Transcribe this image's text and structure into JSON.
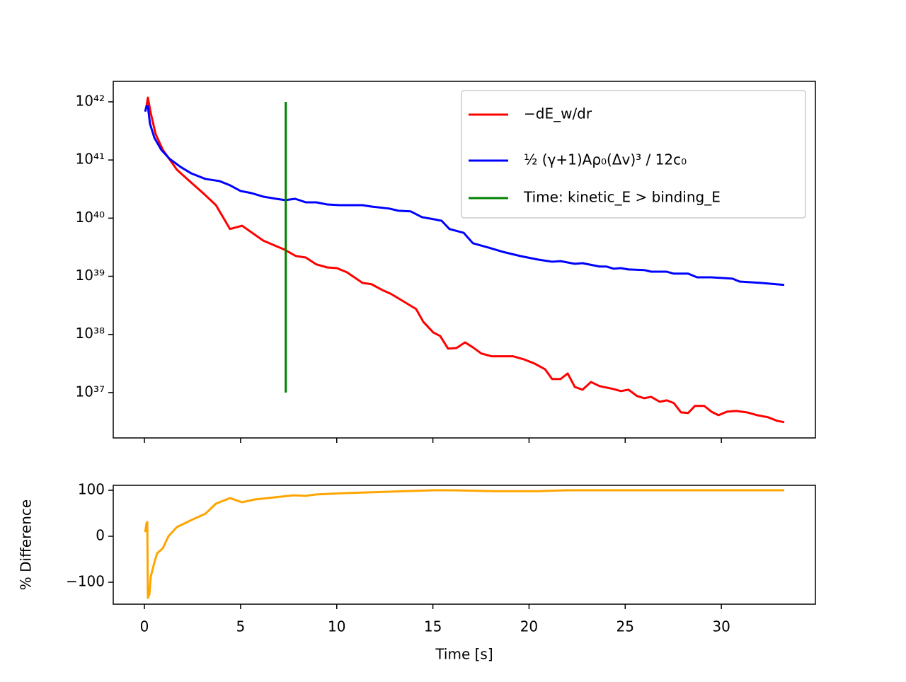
{
  "chart_data": [
    {
      "type": "line",
      "yscale": "log",
      "legend": "upper right",
      "xlim": [
        -1.62,
        34.89
      ],
      "xticks": [
        0,
        5,
        10,
        15,
        20,
        25,
        30
      ],
      "ylim": [
        1.66e+36,
        2.25e+42
      ],
      "yticks": [
        {
          "value": 1e+37,
          "label": "10³⁷"
        },
        {
          "value": 1e+38,
          "label": "10³⁸"
        },
        {
          "value": 1e+39,
          "label": "10³⁹"
        },
        {
          "value": 1e+40,
          "label": "10⁴⁰"
        },
        {
          "value": 1e+41,
          "label": "10⁴¹"
        },
        {
          "value": 1e+42,
          "label": "10⁴²"
        }
      ],
      "series": [
        {
          "name": "−dE_w/dr",
          "color": "#ff0000",
          "x": [
            0.11,
            0.18,
            0.33,
            0.59,
            0.96,
            1.69,
            2.43,
            3.17,
            3.72,
            4.45,
            5.08,
            6.18,
            7.29,
            7.88,
            8.39,
            8.94,
            9.5,
            10.01,
            10.53,
            11.34,
            11.81,
            12.37,
            12.81,
            13.47,
            14.13,
            14.5,
            15.02,
            15.38,
            15.79,
            16.23,
            16.67,
            17.08,
            17.52,
            18.07,
            19.18,
            19.73,
            20.28,
            20.83,
            21.2,
            21.64,
            22.01,
            22.38,
            22.78,
            23.22,
            23.67,
            24.4,
            24.77,
            25.17,
            25.62,
            25.98,
            26.35,
            26.79,
            27.16,
            27.53,
            27.9,
            28.27,
            28.63,
            29.11,
            29.48,
            29.85,
            30.29,
            30.77,
            31.32,
            31.87,
            32.43,
            32.9,
            33.27
          ],
          "values": [
            8.45e+41,
            1.18e+42,
            6.4e+41,
            2.75e+41,
            1.49e+41,
            6.8e+40,
            4.1e+40,
            2.48e+40,
            1.67e+40,
            6.5e+39,
            7.4e+39,
            4.1e+39,
            2.87e+39,
            2.23e+39,
            2.1e+39,
            1.6e+39,
            1.42e+39,
            1.38e+39,
            1.17e+39,
            7.7e+38,
            7.3e+38,
            5.8e+38,
            5e+38,
            3.7e+38,
            2.73e+38,
            1.65e+38,
            1.08e+38,
            9.4e+37,
            5.7e+37,
            5.85e+37,
            7.3e+37,
            6e+37,
            4.7e+37,
            4.2e+37,
            4.2e+37,
            3.73e+37,
            3.16e+37,
            2.52e+37,
            1.71e+37,
            1.71e+37,
            2.13e+37,
            1.25e+37,
            1.12e+37,
            1.52e+37,
            1.29e+37,
            1.15e+37,
            1.06e+37,
            1.12e+37,
            8.7e+36,
            8e+36,
            8.45e+36,
            6.95e+36,
            7.35e+36,
            6.6e+36,
            4.57e+36,
            4.45e+36,
            5.9e+36,
            5.9e+36,
            4.7e+36,
            4.08e+36,
            4.7e+36,
            4.83e+36,
            4.57e+36,
            4.08e+36,
            3.76e+36,
            3.27e+36,
            3.09e+36
          ]
        },
        {
          "name": "½ (γ+1)Aρ₀(Δv)³ / 12c₀",
          "color": "#0000ff",
          "x": [
            0.04,
            0.11,
            0.18,
            0.29,
            0.52,
            0.88,
            1.32,
            1.88,
            2.43,
            3.17,
            3.9,
            4.45,
            5.0,
            5.55,
            6.18,
            6.85,
            7.32,
            7.84,
            8.39,
            8.94,
            9.5,
            10.16,
            11.34,
            11.81,
            12.73,
            13.21,
            13.84,
            14.43,
            15.02,
            15.46,
            15.86,
            16.6,
            17.08,
            17.89,
            18.62,
            19.54,
            20.46,
            21.2,
            21.64,
            22.38,
            22.78,
            23.67,
            24.03,
            24.4,
            24.77,
            25.17,
            25.98,
            26.35,
            27.16,
            27.53,
            28.27,
            28.74,
            29.48,
            30.58,
            30.95,
            32.06,
            33.27
          ],
          "values": [
            6.8e+41,
            8.45e+41,
            8.45e+41,
            4.2e+41,
            2.4e+41,
            1.49e+41,
            1.04e+41,
            7.6e+40,
            5.9e+40,
            4.72e+40,
            4.34e+40,
            3.67e+40,
            2.93e+40,
            2.7e+40,
            2.34e+40,
            2.15e+40,
            2.04e+40,
            2.15e+40,
            1.87e+40,
            1.87e+40,
            1.72e+40,
            1.67e+40,
            1.67e+40,
            1.58e+40,
            1.46e+40,
            1.34e+40,
            1.31e+40,
            1.04e+40,
            9.6e+39,
            9e+39,
            6.5e+39,
            5.6e+39,
            3.7e+39,
            3.12e+39,
            2.64e+39,
            2.23e+39,
            1.94e+39,
            1.78e+39,
            1.82e+39,
            1.64e+39,
            1.68e+39,
            1.47e+39,
            1.47e+39,
            1.35e+39,
            1.38e+39,
            1.31e+39,
            1.28e+39,
            1.2e+39,
            1.2e+39,
            1.11e+39,
            1.11e+39,
            9.6e+38,
            9.6e+38,
            9.1e+38,
            8.1e+38,
            7.7e+38,
            7.1e+38
          ]
        },
        {
          "name": "Time: kinetic_E > binding_E",
          "color": "#008000",
          "x": [
            7.35,
            7.35
          ],
          "values": [
            1e+37,
            1e+42
          ]
        }
      ]
    },
    {
      "type": "line",
      "x_label": "Time [s]",
      "y_label": "% Difference",
      "xlim": [
        -1.62,
        34.89
      ],
      "xticks": [
        0,
        5,
        10,
        15,
        20,
        25,
        30
      ],
      "ylim": [
        -147.7,
        110.8
      ],
      "yticks": [
        {
          "value": -100,
          "label": "−100"
        },
        0,
        100
      ],
      "series": [
        {
          "color": "#ffa500",
          "x": [
            0.04,
            0.11,
            0.15,
            0.18,
            0.26,
            0.33,
            0.52,
            0.66,
            0.96,
            1.25,
            1.69,
            2.43,
            3.17,
            3.72,
            4.45,
            5.08,
            5.74,
            6.85,
            7.77,
            8.39,
            8.94,
            10.53,
            11.34,
            12.73,
            15.02,
            16.05,
            18.26,
            20.46,
            21.94,
            33.27
          ],
          "values": [
            9,
            28,
            31,
            -134,
            -126,
            -88,
            -57,
            -37,
            -26,
            0,
            20,
            35,
            49,
            71,
            83,
            74,
            80,
            85,
            89,
            88,
            91,
            94,
            95,
            97,
            100,
            100,
            98,
            98,
            100,
            100
          ]
        }
      ]
    }
  ]
}
